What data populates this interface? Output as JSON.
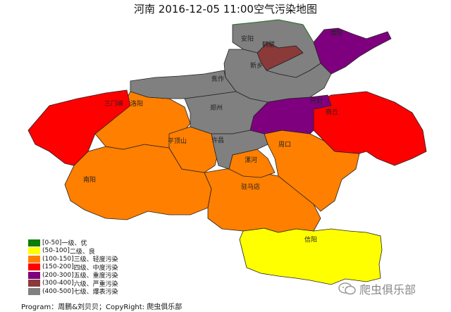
{
  "header": {
    "title": "河南 2016-12-05 11:00空气污染地图"
  },
  "legend": [
    {
      "range": "[0-50]",
      "label": "一级、优",
      "color": "#0a7d0a"
    },
    {
      "range": "(50-100]",
      "label": "二级、良",
      "color": "#ffff00"
    },
    {
      "range": "(100-150]",
      "label": "三级、轻度污染",
      "color": "#ff7f00"
    },
    {
      "range": "(150-200]",
      "label": "四级、中度污染",
      "color": "#ff0000"
    },
    {
      "range": "(200-300]",
      "label": "五级、重度污染",
      "color": "#7f007f"
    },
    {
      "range": "(300-400]",
      "label": "六级、严重污染",
      "color": "#8b3a3a"
    },
    {
      "range": "(400-500]",
      "label": "七级、爆表污染",
      "color": "#808080"
    }
  ],
  "cities": [
    {
      "name": "安阳"
    },
    {
      "name": "鹤壁"
    },
    {
      "name": "濮阳"
    },
    {
      "name": "新乡"
    },
    {
      "name": "焦作"
    },
    {
      "name": "三门峡"
    },
    {
      "name": "洛阳"
    },
    {
      "name": "郑州"
    },
    {
      "name": "开封"
    },
    {
      "name": "商丘"
    },
    {
      "name": "平顶山"
    },
    {
      "name": "许昌"
    },
    {
      "name": "周口"
    },
    {
      "name": "漯河"
    },
    {
      "name": "南阳"
    },
    {
      "name": "驻马店"
    },
    {
      "name": "信阳"
    }
  ],
  "footer": {
    "credit": "Program：周鹏&刘贝贝；CopyRight: 爬虫俱乐部"
  },
  "logo": {
    "text": "爬虫俱乐部"
  }
}
